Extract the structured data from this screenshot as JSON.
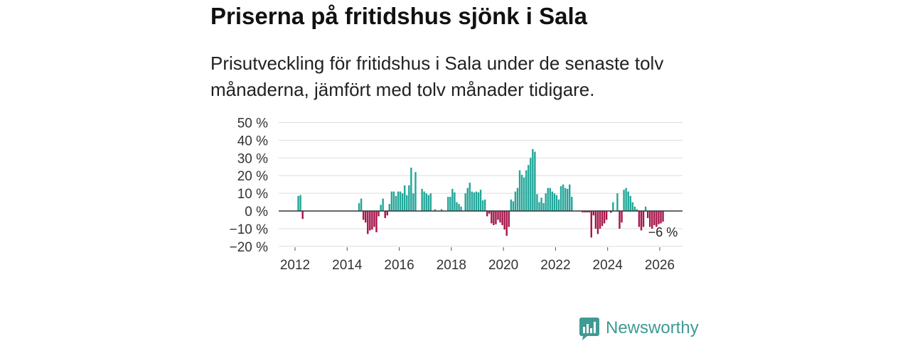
{
  "chart_data": {
    "type": "bar",
    "title": "Priserna på fritidshus sjönk i Sala",
    "subtitle": "Prisutveckling för fritidshus i Sala under de senaste tolv månaderna, jämfört med tolv månader tidigare.",
    "ylim": [
      -20,
      50
    ],
    "y_ticks": [
      {
        "value": 50,
        "label": "50 %"
      },
      {
        "value": 40,
        "label": "40 %"
      },
      {
        "value": 30,
        "label": "30 %"
      },
      {
        "value": 20,
        "label": "20 %"
      },
      {
        "value": 10,
        "label": "10 %"
      },
      {
        "value": 0,
        "label": "0 %"
      },
      {
        "value": -10,
        "label": "−10 %"
      },
      {
        "value": -20,
        "label": "−20 %"
      }
    ],
    "x_ticks": [
      {
        "value": 2012,
        "label": "2012"
      },
      {
        "value": 2014,
        "label": "2014"
      },
      {
        "value": 2016,
        "label": "2016"
      },
      {
        "value": 2018,
        "label": "2018"
      },
      {
        "value": 2020,
        "label": "2020"
      },
      {
        "value": 2022,
        "label": "2022"
      },
      {
        "value": 2024,
        "label": "2024"
      },
      {
        "value": 2026,
        "label": "2026"
      }
    ],
    "series": [
      {
        "x": [
          "2012-02",
          "2012-03",
          "2012-04",
          "2014-06",
          "2014-07",
          "2014-08",
          "2014-09",
          "2014-10",
          "2014-11",
          "2014-12",
          "2015-01",
          "2015-02",
          "2015-03",
          "2015-04",
          "2015-05",
          "2015-06",
          "2015-07",
          "2015-08",
          "2015-09",
          "2015-10",
          "2015-11",
          "2015-12",
          "2016-01",
          "2016-02",
          "2016-03",
          "2016-04",
          "2016-05",
          "2016-06",
          "2016-07",
          "2016-08",
          "2016-11",
          "2016-12",
          "2017-01",
          "2017-02",
          "2017-03",
          "2017-05",
          "2017-08",
          "2017-11",
          "2017-12",
          "2018-01",
          "2018-02",
          "2018-03",
          "2018-04",
          "2018-05",
          "2018-07",
          "2018-08",
          "2018-09",
          "2018-10",
          "2018-11",
          "2018-12",
          "2019-01",
          "2019-02",
          "2019-03",
          "2019-04",
          "2019-05",
          "2019-06",
          "2019-07",
          "2019-08",
          "2019-09",
          "2019-10",
          "2019-11",
          "2019-12",
          "2020-01",
          "2020-02",
          "2020-03",
          "2020-04",
          "2020-05",
          "2020-06",
          "2020-07",
          "2020-08",
          "2020-09",
          "2020-10",
          "2020-11",
          "2020-12",
          "2021-01",
          "2021-02",
          "2021-03",
          "2021-04",
          "2021-05",
          "2021-06",
          "2021-07",
          "2021-08",
          "2021-09",
          "2021-10",
          "2021-11",
          "2021-12",
          "2022-01",
          "2022-02",
          "2022-03",
          "2022-04",
          "2022-05",
          "2022-06",
          "2022-07",
          "2022-08",
          "2023-01",
          "2023-02",
          "2023-03",
          "2023-04",
          "2023-05",
          "2023-06",
          "2023-07",
          "2023-08",
          "2023-09",
          "2023-10",
          "2023-11",
          "2023-12",
          "2024-02",
          "2024-03",
          "2024-05",
          "2024-06",
          "2024-07",
          "2024-08",
          "2024-09",
          "2024-10",
          "2024-11",
          "2024-12",
          "2025-01",
          "2025-02",
          "2025-03",
          "2025-04",
          "2025-05",
          "2025-06",
          "2025-07",
          "2025-08",
          "2025-09",
          "2025-10",
          "2025-11",
          "2025-12",
          "2026-01",
          "2026-02"
        ],
        "values": [
          8.5,
          9,
          -4.5,
          4.5,
          7,
          -5,
          -6.5,
          -13,
          -11,
          -10.5,
          -9,
          -12,
          -3,
          3.5,
          7,
          -4,
          -2.5,
          4,
          11,
          11,
          8.5,
          11,
          11,
          10,
          14.5,
          9,
          14.5,
          24.5,
          10,
          22,
          12.5,
          11,
          10,
          9,
          10,
          1,
          1,
          8,
          8,
          12.5,
          10.5,
          5,
          4,
          2.5,
          10,
          13,
          16,
          11,
          10.5,
          11,
          10.5,
          12,
          6,
          6.5,
          -3,
          -1.5,
          -7,
          -8,
          -7.5,
          -5,
          -6.5,
          -8,
          -10.5,
          -14,
          -9,
          6.5,
          5.5,
          11,
          13,
          23,
          20.5,
          19,
          23,
          26,
          30,
          35,
          33.5,
          9.5,
          5,
          7.5,
          4.5,
          10,
          13,
          13,
          11,
          10,
          9,
          6.5,
          14,
          15,
          13,
          12.5,
          15,
          8,
          -0.8,
          -0.8,
          -0.8,
          -0.8,
          -15,
          -2.5,
          -10,
          -13,
          -10,
          -8.5,
          -7,
          -5,
          -1,
          5,
          10,
          -10,
          -6.5,
          12,
          13,
          11,
          8.5,
          5,
          2.5,
          1,
          -9,
          -11,
          -9,
          2.5,
          -4,
          -9,
          -10,
          -8,
          -9,
          -7.5,
          -7,
          -6
        ]
      }
    ],
    "annotations": [
      {
        "x": "2026-02",
        "y": -6,
        "text": "−6 %"
      }
    ],
    "colors": {
      "positive": "#22a699",
      "negative": "#a5144a",
      "zero_line": "#333333",
      "grid": "#dddddd",
      "tick": "#555555"
    }
  },
  "brand": {
    "name": "Newsworthy",
    "icon": "newsworthy-logo-icon",
    "color": "#3f9a93"
  }
}
